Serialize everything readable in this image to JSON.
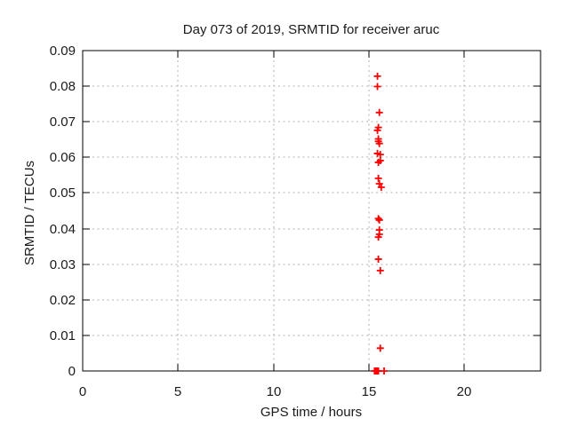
{
  "chart_data": {
    "type": "scatter",
    "title": "Day 073 of 2019, SRMTID for receiver aruc",
    "xlabel": "GPS time / hours",
    "ylabel": "SRMTID / TECUs",
    "xlim": [
      0,
      24
    ],
    "ylim": [
      0,
      0.09
    ],
    "xticks": [
      {
        "v": 0,
        "label": "0"
      },
      {
        "v": 5,
        "label": "5"
      },
      {
        "v": 10,
        "label": "10"
      },
      {
        "v": 15,
        "label": "15"
      },
      {
        "v": 20,
        "label": "20"
      }
    ],
    "yticks": [
      {
        "v": 0.0,
        "label": "0"
      },
      {
        "v": 0.01,
        "label": "0.01"
      },
      {
        "v": 0.02,
        "label": "0.02"
      },
      {
        "v": 0.03,
        "label": "0.03"
      },
      {
        "v": 0.04,
        "label": "0.04"
      },
      {
        "v": 0.05,
        "label": "0.05"
      },
      {
        "v": 0.06,
        "label": "0.06"
      },
      {
        "v": 0.07,
        "label": "0.07"
      },
      {
        "v": 0.08,
        "label": "0.08"
      },
      {
        "v": 0.09,
        "label": "0.09"
      }
    ],
    "grid": true,
    "legend": "none",
    "marker": "plus",
    "colors": {
      "points": "#ff0000",
      "grid": "#b0b0b0",
      "axis": "#000000",
      "text": "#1a1a1a"
    },
    "series": [
      {
        "name": "SRMTID",
        "points": [
          [
            15.45,
            0.0828
          ],
          [
            15.45,
            0.0799
          ],
          [
            15.55,
            0.0726
          ],
          [
            15.5,
            0.0684
          ],
          [
            15.45,
            0.0676
          ],
          [
            15.5,
            0.0652
          ],
          [
            15.5,
            0.0645
          ],
          [
            15.55,
            0.0639
          ],
          [
            15.45,
            0.0611
          ],
          [
            15.6,
            0.0608
          ],
          [
            15.6,
            0.0591
          ],
          [
            15.5,
            0.0586
          ],
          [
            15.5,
            0.0541
          ],
          [
            15.55,
            0.0526
          ],
          [
            15.65,
            0.0516
          ],
          [
            15.5,
            0.0428
          ],
          [
            15.55,
            0.0424
          ],
          [
            15.55,
            0.0396
          ],
          [
            15.55,
            0.0384
          ],
          [
            15.5,
            0.0376
          ],
          [
            15.5,
            0.0314
          ],
          [
            15.6,
            0.0282
          ],
          [
            15.6,
            0.0064
          ],
          [
            15.3,
            0.0
          ],
          [
            15.35,
            0.0
          ],
          [
            15.4,
            0.0
          ],
          [
            15.45,
            0.0
          ],
          [
            15.5,
            0.0
          ],
          [
            15.8,
            0.0
          ]
        ]
      }
    ]
  }
}
